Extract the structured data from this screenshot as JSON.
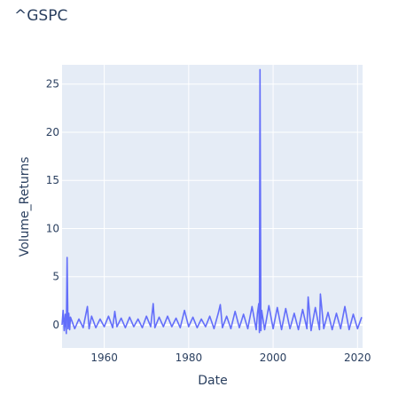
{
  "chart_data": {
    "type": "line",
    "title": "^GSPC",
    "xlabel": "Date",
    "ylabel": "Volume_Returns",
    "xlim": [
      1950.0,
      2021.2
    ],
    "ylim": [
      -2.4,
      27.0
    ],
    "x_ticks": [
      {
        "label": "1960",
        "value": 1960
      },
      {
        "label": "1980",
        "value": 1980
      },
      {
        "label": "2000",
        "value": 2000
      },
      {
        "label": "2020",
        "value": 2020
      }
    ],
    "y_ticks": [
      {
        "label": "0",
        "value": 0
      },
      {
        "label": "5",
        "value": 5
      },
      {
        "label": "10",
        "value": 10
      },
      {
        "label": "15",
        "value": 15
      },
      {
        "label": "20",
        "value": 20
      },
      {
        "label": "25",
        "value": 25
      }
    ],
    "grid": true,
    "colors": {
      "plot_background": "#e5ecf6",
      "gridline": "#ffffff",
      "series_line": "#636efa",
      "text": "#2a3f5f"
    },
    "series": [
      {
        "x": [
          1950.0,
          1950.25,
          1950.5,
          1950.75,
          1951.0,
          1951.2,
          1951.4,
          1951.6,
          1951.8,
          1952.0,
          1953.0,
          1954.0,
          1955.0,
          1956.0,
          1956.4,
          1957.0,
          1958.0,
          1959.0,
          1960.0,
          1961.0,
          1962.0,
          1962.5,
          1963.0,
          1964.0,
          1965.0,
          1966.0,
          1967.0,
          1968.0,
          1969.0,
          1970.0,
          1971.0,
          1971.6,
          1972.0,
          1973.0,
          1974.0,
          1975.0,
          1976.0,
          1977.0,
          1978.0,
          1979.0,
          1980.0,
          1981.0,
          1982.0,
          1983.0,
          1984.0,
          1985.0,
          1986.0,
          1987.0,
          1987.5,
          1988.0,
          1989.0,
          1990.0,
          1991.0,
          1992.0,
          1993.0,
          1994.0,
          1995.0,
          1996.0,
          1996.3,
          1996.6,
          1996.75,
          1996.9,
          1997.1,
          1997.3,
          1998.0,
          1999.0,
          2000.0,
          2001.0,
          2002.0,
          2003.0,
          2004.0,
          2005.0,
          2006.0,
          2007.0,
          2008.0,
          2008.3,
          2009.0,
          2010.0,
          2011.0,
          2011.2,
          2012.0,
          2013.0,
          2014.0,
          2015.0,
          2016.0,
          2017.0,
          2018.0,
          2019.0,
          2020.0,
          2021.0
        ],
        "y": [
          0.0,
          1.5,
          -0.6,
          1.1,
          -0.9,
          7.0,
          -0.4,
          1.2,
          -0.5,
          0.8,
          -0.4,
          0.6,
          -0.3,
          1.9,
          -0.4,
          0.9,
          -0.3,
          0.6,
          -0.2,
          0.9,
          -0.3,
          1.4,
          -0.2,
          0.7,
          -0.3,
          0.8,
          -0.2,
          0.6,
          -0.3,
          0.9,
          -0.2,
          2.2,
          -0.3,
          0.8,
          -0.2,
          0.9,
          -0.2,
          0.7,
          -0.3,
          1.5,
          -0.2,
          0.8,
          -0.3,
          0.6,
          -0.2,
          0.9,
          -0.4,
          1.2,
          2.1,
          -0.3,
          0.9,
          -0.4,
          1.4,
          -0.3,
          1.1,
          -0.4,
          1.9,
          -0.5,
          1.2,
          2.2,
          -0.8,
          26.5,
          -0.6,
          1.5,
          -0.5,
          2.0,
          -0.4,
          1.8,
          -0.5,
          1.7,
          -0.4,
          1.2,
          -0.5,
          1.6,
          -0.4,
          2.9,
          -0.6,
          1.8,
          -0.5,
          3.2,
          -0.4,
          1.3,
          -0.5,
          1.2,
          -0.4,
          1.9,
          -0.5,
          1.1,
          -0.4,
          0.8
        ]
      }
    ]
  }
}
